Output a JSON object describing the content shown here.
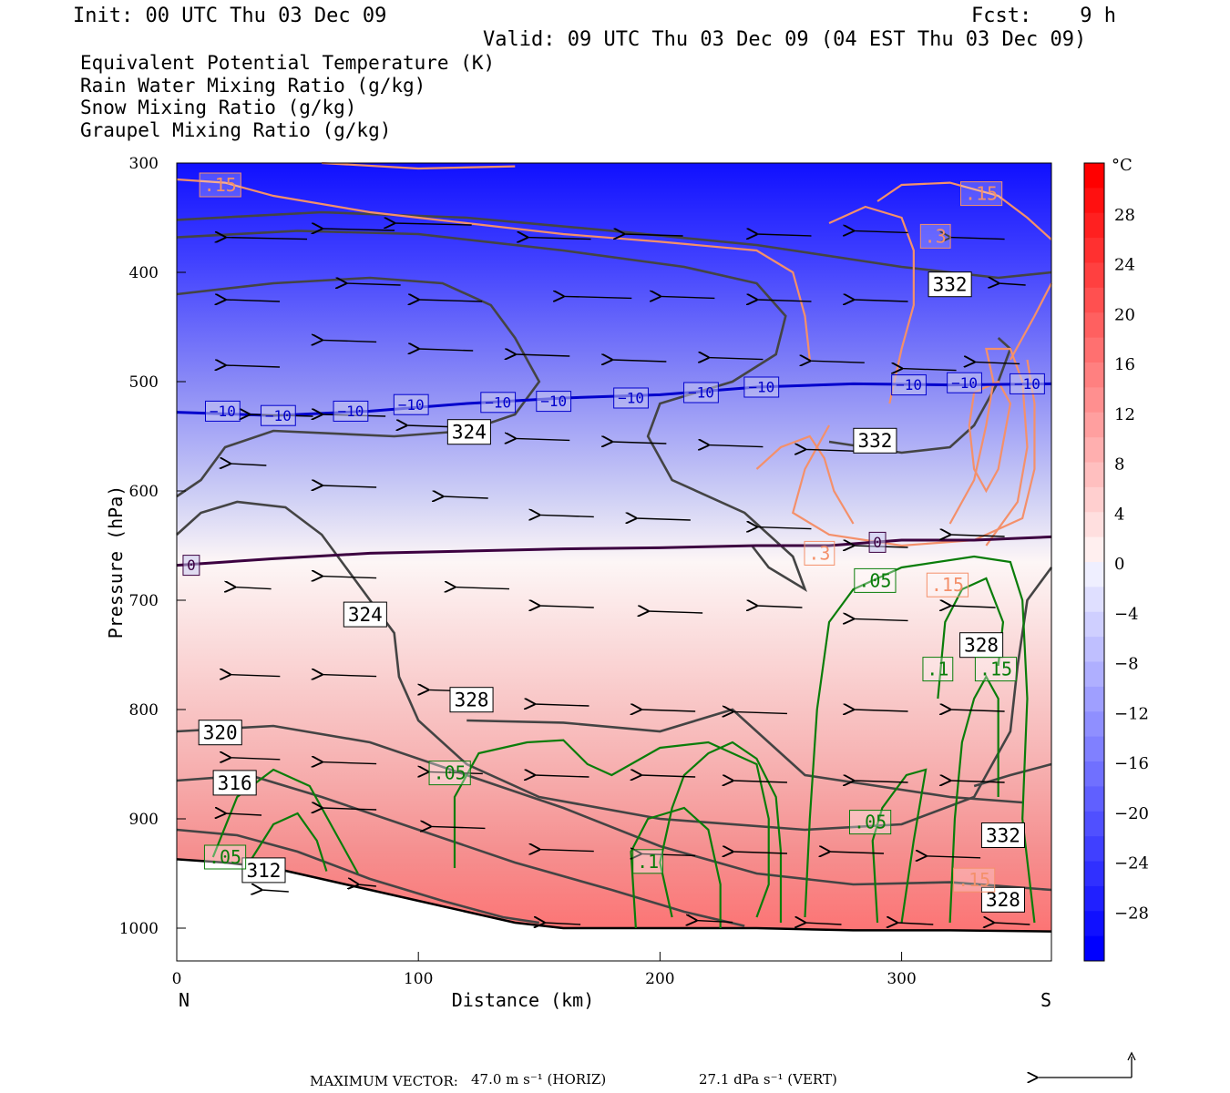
{
  "header": {
    "init": "Init: 00 UTC Thu 03 Dec 09",
    "fcst": "Fcst:    9 h",
    "valid": "Valid: 09 UTC Thu 03 Dec 09 (04 EST Thu 03 Dec 09)"
  },
  "legend": [
    {
      "label": "Equivalent Potential Temperature (K)",
      "color": "#555555"
    },
    {
      "label": "Rain Water Mixing Ratio (g/kg)",
      "color": "#0a7d0a"
    },
    {
      "label": "Snow Mixing Ratio (g/kg)",
      "color": "#f4906a"
    },
    {
      "label": "Graupel Mixing Ratio (g/kg)",
      "color": "#ee82ee"
    }
  ],
  "chart_data": {
    "type": "cross-section",
    "xlabel": "Distance (km)",
    "ylabel": "Pressure (hPa)",
    "x_ticks": [
      "0",
      "100",
      "200",
      "300"
    ],
    "x_tick_values": [
      0,
      100,
      200,
      300
    ],
    "xlim": [
      0,
      362
    ],
    "y_ticks": [
      "300",
      "400",
      "500",
      "600",
      "700",
      "800",
      "900",
      "1000"
    ],
    "y_tick_values": [
      300,
      400,
      500,
      600,
      700,
      800,
      900,
      1000
    ],
    "ylim": [
      300,
      1030
    ],
    "left_end_label": "N",
    "right_end_label": "S",
    "temperature_colorbar": {
      "unit": "°C",
      "labels": [
        "28",
        "24",
        "20",
        "16",
        "12",
        "8",
        "4",
        "0",
        "−4",
        "−8",
        "−12",
        "−16",
        "−20",
        "−24",
        "−28"
      ],
      "values": [
        28,
        24,
        20,
        16,
        12,
        8,
        4,
        0,
        -4,
        -8,
        -12,
        -16,
        -20,
        -24,
        -28
      ],
      "min_color": "#0000ff",
      "zero_color": "#ffffff",
      "max_color": "#ff0000"
    },
    "isotherms": [
      {
        "label": "−10",
        "value": -10,
        "color": "#0000cc",
        "points": [
          [
            0,
            528
          ],
          [
            40,
            531
          ],
          [
            80,
            527
          ],
          [
            120,
            520
          ],
          [
            160,
            515
          ],
          [
            200,
            512
          ],
          [
            240,
            505
          ],
          [
            280,
            502
          ],
          [
            320,
            503
          ],
          [
            362,
            502
          ]
        ]
      },
      {
        "label": "0",
        "value": 0,
        "color": "#3c0040",
        "points": [
          [
            0,
            668
          ],
          [
            40,
            662
          ],
          [
            80,
            657
          ],
          [
            120,
            655
          ],
          [
            160,
            653
          ],
          [
            200,
            652
          ],
          [
            240,
            650
          ],
          [
            270,
            650
          ],
          [
            300,
            645
          ],
          [
            330,
            645
          ],
          [
            362,
            642
          ]
        ]
      }
    ],
    "theta_e_labels": [
      {
        "text": "332",
        "x": 320,
        "p": 411
      },
      {
        "text": "324",
        "x": 121,
        "p": 546
      },
      {
        "text": "332",
        "x": 289,
        "p": 554
      },
      {
        "text": "324",
        "x": 78,
        "p": 713
      },
      {
        "text": "328",
        "x": 333,
        "p": 741
      },
      {
        "text": "328",
        "x": 122,
        "p": 791
      },
      {
        "text": "320",
        "x": 18,
        "p": 821
      },
      {
        "text": "316",
        "x": 24,
        "p": 867
      },
      {
        "text": "312",
        "x": 36,
        "p": 947
      },
      {
        "text": "332",
        "x": 342,
        "p": 915
      },
      {
        "text": "328",
        "x": 342,
        "p": 974
      }
    ],
    "isotherm_labels": [
      {
        "text": "−10",
        "x": 19,
        "p": 527
      },
      {
        "text": "−10",
        "x": 42,
        "p": 531
      },
      {
        "text": "−10",
        "x": 72,
        "p": 527
      },
      {
        "text": "−10",
        "x": 97,
        "p": 521
      },
      {
        "text": "−10",
        "x": 133,
        "p": 519
      },
      {
        "text": "−10",
        "x": 156,
        "p": 518
      },
      {
        "text": "−10",
        "x": 188,
        "p": 515
      },
      {
        "text": "−10",
        "x": 217,
        "p": 510
      },
      {
        "text": "−10",
        "x": 242,
        "p": 505
      },
      {
        "text": "−10",
        "x": 303,
        "p": 503
      },
      {
        "text": "−10",
        "x": 326,
        "p": 501
      },
      {
        "text": "−10",
        "x": 352,
        "p": 502
      },
      {
        "text": "0",
        "x": 6,
        "p": 668
      },
      {
        "text": "0",
        "x": 290,
        "p": 647
      }
    ],
    "rain_labels": [
      {
        "text": ".05",
        "x": 289,
        "p": 682
      },
      {
        "text": ".1",
        "x": 315,
        "p": 763
      },
      {
        "text": ".15",
        "x": 339,
        "p": 763
      },
      {
        "text": ".05",
        "x": 113,
        "p": 858
      },
      {
        "text": ".05",
        "x": 287,
        "p": 903
      },
      {
        "text": ".05",
        "x": 20,
        "p": 935
      },
      {
        "text": ".1",
        "x": 195,
        "p": 939
      }
    ],
    "snow_labels": [
      {
        "text": ".15",
        "x": 18,
        "p": 320
      },
      {
        "text": ".15",
        "x": 333,
        "p": 328
      },
      {
        "text": ".3",
        "x": 314,
        "p": 367
      },
      {
        "text": ".3",
        "x": 266,
        "p": 657
      },
      {
        "text": ".15",
        "x": 319,
        "p": 686
      },
      {
        "text": ".15",
        "x": 330,
        "p": 956
      }
    ]
  },
  "footer": {
    "max_vector_label": "MAXIMUM VECTOR:",
    "horiz_value": "47.0 m s⁻¹ (HORIZ)",
    "vert_value": "27.1 dPa s⁻¹ (VERT)"
  }
}
